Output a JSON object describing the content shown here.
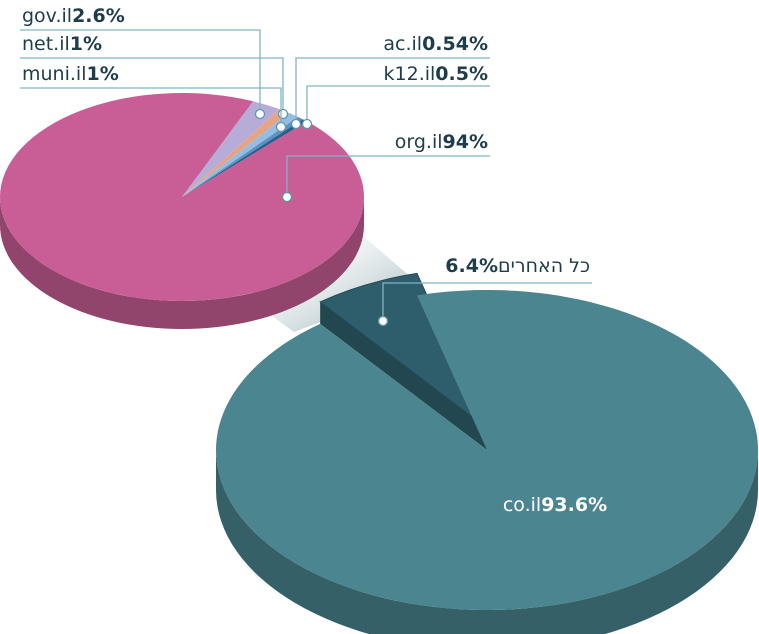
{
  "chart_data": [
    {
      "type": "pie",
      "categories": [
        "gov.il",
        "net.il",
        "muni.il",
        "ac.il",
        "k12.il",
        "org.il"
      ],
      "values": [
        2.6,
        1,
        1,
        0.54,
        0.5,
        94
      ],
      "value_labels": [
        "2.6%",
        "1%",
        "1%",
        "0.54%",
        "0.5%",
        "94%"
      ],
      "colors": [
        "#b7acd8",
        "#e6a487",
        "#93bde3",
        "#5d93c4",
        "#2f5f8c",
        "#c95e96"
      ]
    },
    {
      "type": "pie",
      "categories": [
        "כל האחרים",
        "co.il"
      ],
      "values": [
        6.4,
        93.6
      ],
      "value_labels": [
        "6.4%",
        "93.6%"
      ],
      "colors": [
        "#2e5e6c",
        "#4b8590"
      ]
    }
  ]
}
